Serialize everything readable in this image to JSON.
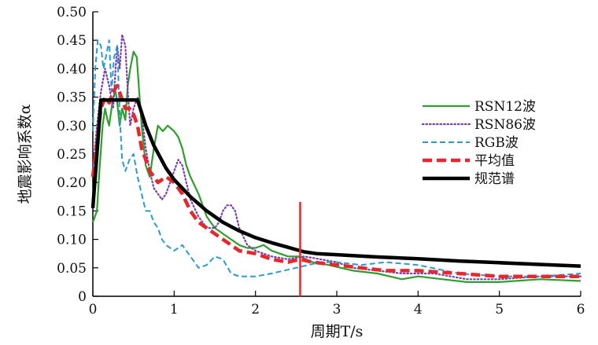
{
  "chart_data": {
    "type": "line",
    "title": "",
    "xlabel": "周期T/s",
    "ylabel": "地震影响系数α",
    "xlim": [
      0,
      6
    ],
    "ylim": [
      0,
      0.5
    ],
    "xticks": [
      "0",
      "1",
      "2",
      "3",
      "4",
      "5",
      "6"
    ],
    "yticks": [
      "0",
      "0.05",
      "0.10",
      "0.15",
      "0.20",
      "0.25",
      "0.30",
      "0.35",
      "0.40",
      "0.45",
      "0.50"
    ],
    "legend_position": "right",
    "marker_line_x": 2.55,
    "series": [
      {
        "name": "RSN12波",
        "color": "#2ca02c",
        "style": "solid",
        "points": [
          [
            0,
            0.13
          ],
          [
            0.05,
            0.15
          ],
          [
            0.08,
            0.22
          ],
          [
            0.12,
            0.3
          ],
          [
            0.15,
            0.33
          ],
          [
            0.18,
            0.31
          ],
          [
            0.2,
            0.3
          ],
          [
            0.22,
            0.32
          ],
          [
            0.25,
            0.35
          ],
          [
            0.28,
            0.36
          ],
          [
            0.3,
            0.34
          ],
          [
            0.33,
            0.3
          ],
          [
            0.36,
            0.33
          ],
          [
            0.4,
            0.31
          ],
          [
            0.43,
            0.37
          ],
          [
            0.46,
            0.4
          ],
          [
            0.5,
            0.43
          ],
          [
            0.54,
            0.42
          ],
          [
            0.57,
            0.36
          ],
          [
            0.6,
            0.3
          ],
          [
            0.65,
            0.23
          ],
          [
            0.7,
            0.21
          ],
          [
            0.75,
            0.26
          ],
          [
            0.8,
            0.3
          ],
          [
            0.86,
            0.29
          ],
          [
            0.92,
            0.3
          ],
          [
            1.0,
            0.29
          ],
          [
            1.05,
            0.28
          ],
          [
            1.1,
            0.26
          ],
          [
            1.15,
            0.23
          ],
          [
            1.2,
            0.21
          ],
          [
            1.3,
            0.18
          ],
          [
            1.4,
            0.14
          ],
          [
            1.5,
            0.12
          ],
          [
            1.6,
            0.11
          ],
          [
            1.7,
            0.1
          ],
          [
            1.8,
            0.09
          ],
          [
            1.9,
            0.085
          ],
          [
            2.0,
            0.085
          ],
          [
            2.1,
            0.09
          ],
          [
            2.2,
            0.08
          ],
          [
            2.3,
            0.075
          ],
          [
            2.4,
            0.07
          ],
          [
            2.55,
            0.07
          ],
          [
            2.7,
            0.06
          ],
          [
            2.9,
            0.055
          ],
          [
            3.2,
            0.045
          ],
          [
            3.5,
            0.04
          ],
          [
            3.8,
            0.03
          ],
          [
            4.0,
            0.035
          ],
          [
            4.3,
            0.03
          ],
          [
            4.6,
            0.025
          ],
          [
            5.0,
            0.025
          ],
          [
            5.5,
            0.03
          ],
          [
            6.0,
            0.027
          ]
        ]
      },
      {
        "name": "RSN86波",
        "color": "#7b3fb0",
        "style": "dotted",
        "points": [
          [
            0,
            0.22
          ],
          [
            0.05,
            0.3
          ],
          [
            0.1,
            0.36
          ],
          [
            0.15,
            0.4
          ],
          [
            0.2,
            0.37
          ],
          [
            0.25,
            0.33
          ],
          [
            0.28,
            0.4
          ],
          [
            0.3,
            0.44
          ],
          [
            0.33,
            0.4
          ],
          [
            0.36,
            0.46
          ],
          [
            0.4,
            0.44
          ],
          [
            0.43,
            0.36
          ],
          [
            0.46,
            0.3
          ],
          [
            0.5,
            0.33
          ],
          [
            0.55,
            0.35
          ],
          [
            0.6,
            0.32
          ],
          [
            0.65,
            0.26
          ],
          [
            0.7,
            0.22
          ],
          [
            0.75,
            0.19
          ],
          [
            0.8,
            0.18
          ],
          [
            0.85,
            0.17
          ],
          [
            0.9,
            0.18
          ],
          [
            0.95,
            0.2
          ],
          [
            1.0,
            0.22
          ],
          [
            1.05,
            0.24
          ],
          [
            1.1,
            0.23
          ],
          [
            1.15,
            0.2
          ],
          [
            1.2,
            0.17
          ],
          [
            1.3,
            0.14
          ],
          [
            1.4,
            0.12
          ],
          [
            1.5,
            0.12
          ],
          [
            1.55,
            0.13
          ],
          [
            1.6,
            0.15
          ],
          [
            1.65,
            0.16
          ],
          [
            1.7,
            0.16
          ],
          [
            1.75,
            0.15
          ],
          [
            1.8,
            0.12
          ],
          [
            1.9,
            0.09
          ],
          [
            2.0,
            0.08
          ],
          [
            2.2,
            0.07
          ],
          [
            2.4,
            0.065
          ],
          [
            2.6,
            0.07
          ],
          [
            2.8,
            0.065
          ],
          [
            3.0,
            0.06
          ],
          [
            3.2,
            0.05
          ],
          [
            3.5,
            0.045
          ],
          [
            3.8,
            0.04
          ],
          [
            4.2,
            0.04
          ],
          [
            4.6,
            0.03
          ],
          [
            5.0,
            0.03
          ],
          [
            5.5,
            0.035
          ],
          [
            6.0,
            0.035
          ]
        ]
      },
      {
        "name": "RGB波",
        "color": "#2a9ad6",
        "style": "dashed",
        "points": [
          [
            0,
            0.29
          ],
          [
            0.03,
            0.4
          ],
          [
            0.06,
            0.45
          ],
          [
            0.1,
            0.44
          ],
          [
            0.13,
            0.4
          ],
          [
            0.16,
            0.42
          ],
          [
            0.2,
            0.45
          ],
          [
            0.23,
            0.36
          ],
          [
            0.26,
            0.42
          ],
          [
            0.3,
            0.44
          ],
          [
            0.33,
            0.32
          ],
          [
            0.36,
            0.24
          ],
          [
            0.4,
            0.22
          ],
          [
            0.45,
            0.24
          ],
          [
            0.5,
            0.25
          ],
          [
            0.55,
            0.21
          ],
          [
            0.6,
            0.18
          ],
          [
            0.65,
            0.15
          ],
          [
            0.7,
            0.15
          ],
          [
            0.75,
            0.13
          ],
          [
            0.8,
            0.12
          ],
          [
            0.85,
            0.1
          ],
          [
            0.9,
            0.09
          ],
          [
            0.95,
            0.085
          ],
          [
            1.0,
            0.08
          ],
          [
            1.1,
            0.09
          ],
          [
            1.2,
            0.07
          ],
          [
            1.3,
            0.05
          ],
          [
            1.4,
            0.055
          ],
          [
            1.5,
            0.07
          ],
          [
            1.6,
            0.065
          ],
          [
            1.7,
            0.04
          ],
          [
            1.8,
            0.035
          ],
          [
            2.0,
            0.035
          ],
          [
            2.2,
            0.04
          ],
          [
            2.5,
            0.05
          ],
          [
            2.8,
            0.06
          ],
          [
            3.0,
            0.06
          ],
          [
            3.3,
            0.055
          ],
          [
            3.6,
            0.06
          ],
          [
            4.0,
            0.055
          ],
          [
            4.5,
            0.04
          ],
          [
            5.0,
            0.035
          ],
          [
            5.5,
            0.035
          ],
          [
            6.0,
            0.04
          ]
        ]
      },
      {
        "name": "平均值",
        "color": "#e8262b",
        "style": "dashed-bold",
        "points": [
          [
            0,
            0.21
          ],
          [
            0.05,
            0.27
          ],
          [
            0.1,
            0.33
          ],
          [
            0.15,
            0.35
          ],
          [
            0.2,
            0.34
          ],
          [
            0.25,
            0.36
          ],
          [
            0.3,
            0.37
          ],
          [
            0.35,
            0.35
          ],
          [
            0.4,
            0.33
          ],
          [
            0.45,
            0.33
          ],
          [
            0.5,
            0.32
          ],
          [
            0.55,
            0.3
          ],
          [
            0.6,
            0.26
          ],
          [
            0.7,
            0.22
          ],
          [
            0.8,
            0.2
          ],
          [
            0.9,
            0.21
          ],
          [
            1.0,
            0.2
          ],
          [
            1.1,
            0.18
          ],
          [
            1.2,
            0.15
          ],
          [
            1.3,
            0.13
          ],
          [
            1.4,
            0.12
          ],
          [
            1.5,
            0.11
          ],
          [
            1.6,
            0.1
          ],
          [
            1.7,
            0.09
          ],
          [
            1.8,
            0.08
          ],
          [
            2.0,
            0.075
          ],
          [
            2.2,
            0.065
          ],
          [
            2.4,
            0.06
          ],
          [
            2.55,
            0.065
          ],
          [
            2.7,
            0.06
          ],
          [
            3.0,
            0.055
          ],
          [
            3.3,
            0.05
          ],
          [
            3.6,
            0.045
          ],
          [
            4.0,
            0.045
          ],
          [
            4.5,
            0.04
          ],
          [
            5.0,
            0.035
          ],
          [
            5.5,
            0.035
          ],
          [
            6.0,
            0.035
          ]
        ]
      },
      {
        "name": "规范谱",
        "color": "#000000",
        "style": "solid-bold",
        "points": [
          [
            0,
            0.155
          ],
          [
            0.05,
            0.25
          ],
          [
            0.1,
            0.345
          ],
          [
            0.55,
            0.345
          ],
          [
            0.65,
            0.3
          ],
          [
            0.75,
            0.265
          ],
          [
            0.9,
            0.225
          ],
          [
            1.0,
            0.205
          ],
          [
            1.2,
            0.175
          ],
          [
            1.4,
            0.15
          ],
          [
            1.6,
            0.13
          ],
          [
            1.8,
            0.115
          ],
          [
            2.0,
            0.103
          ],
          [
            2.2,
            0.094
          ],
          [
            2.4,
            0.086
          ],
          [
            2.6,
            0.078
          ],
          [
            2.75,
            0.075
          ],
          [
            3.0,
            0.073
          ],
          [
            3.5,
            0.069
          ],
          [
            4.0,
            0.066
          ],
          [
            4.5,
            0.062
          ],
          [
            5.0,
            0.059
          ],
          [
            5.5,
            0.056
          ],
          [
            6.0,
            0.053
          ]
        ]
      }
    ]
  }
}
